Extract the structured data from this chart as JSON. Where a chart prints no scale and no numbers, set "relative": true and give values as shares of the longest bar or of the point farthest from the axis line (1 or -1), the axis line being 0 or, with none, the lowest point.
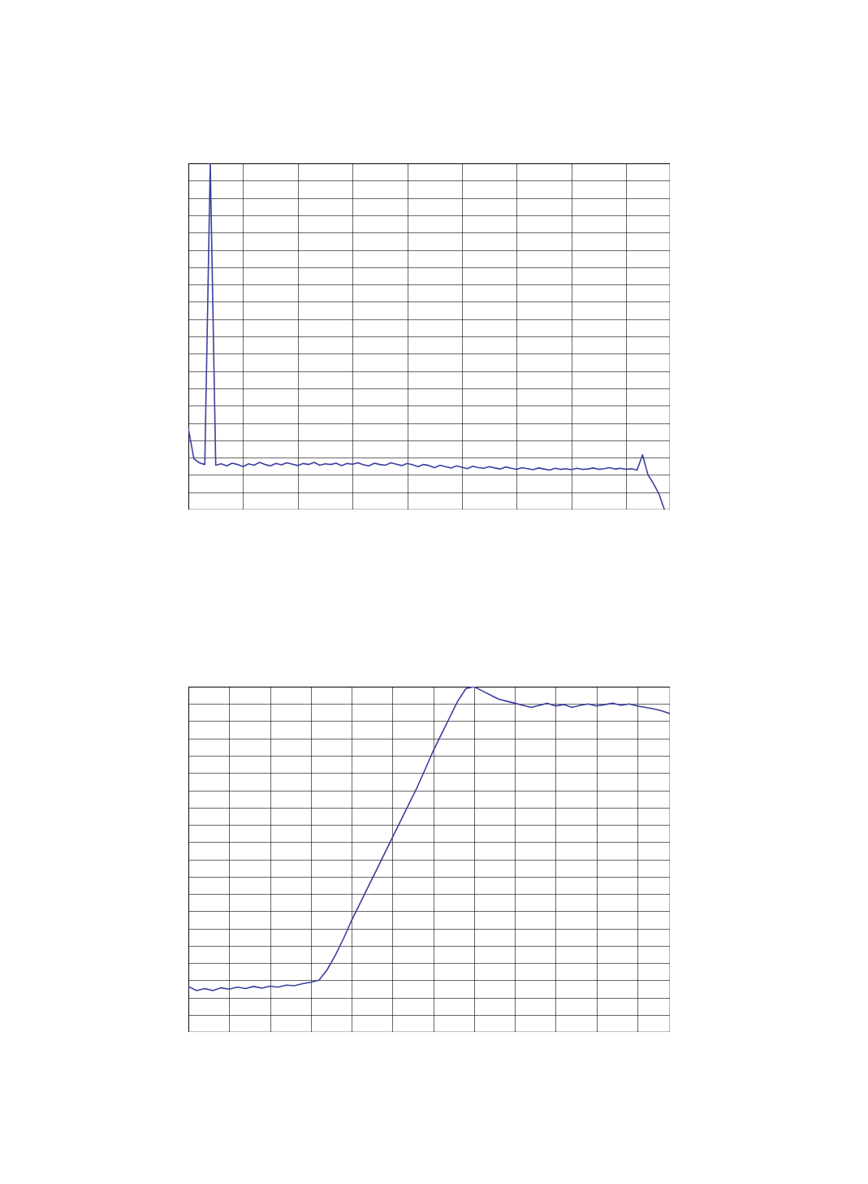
{
  "chart_data": [
    {
      "type": "line",
      "relative": true,
      "grid": true,
      "categories": [
        null,
        null,
        null,
        null,
        null,
        null,
        null,
        null,
        null,
        null,
        null,
        null,
        null,
        null,
        null,
        null,
        null,
        null,
        null,
        null,
        null,
        null,
        null,
        null,
        null,
        null,
        null,
        null,
        null,
        null,
        null,
        null,
        null,
        null,
        null,
        null,
        null,
        null,
        null,
        null,
        null,
        null,
        null,
        null,
        null,
        null,
        null,
        null,
        null,
        null,
        null,
        null,
        null,
        null,
        null,
        null,
        null,
        null,
        null,
        null,
        null,
        null,
        null,
        null,
        null,
        null,
        null,
        null,
        null,
        null,
        null,
        null,
        null,
        null,
        null,
        null,
        null,
        null,
        null,
        null,
        null,
        null,
        null,
        null,
        null,
        null,
        null,
        null,
        null
      ],
      "series": [
        {
          "color": "#3b3fa0",
          "values": [
            0.234,
            0.147,
            0.135,
            0.13,
            1,
            0.128,
            0.132,
            0.126,
            0.134,
            0.13,
            0.124,
            0.132,
            0.128,
            0.136,
            0.13,
            0.126,
            0.133,
            0.129,
            0.135,
            0.131,
            0.127,
            0.133,
            0.13,
            0.136,
            0.128,
            0.132,
            0.13,
            0.134,
            0.127,
            0.133,
            0.131,
            0.135,
            0.129,
            0.126,
            0.134,
            0.13,
            0.128,
            0.135,
            0.131,
            0.127,
            0.133,
            0.129,
            0.124,
            0.13,
            0.127,
            0.121,
            0.128,
            0.124,
            0.12,
            0.126,
            0.122,
            0.118,
            0.125,
            0.121,
            0.119,
            0.124,
            0.12,
            0.117,
            0.123,
            0.119,
            0.116,
            0.121,
            0.118,
            0.115,
            0.12,
            0.117,
            0.114,
            0.119,
            0.116,
            0.118,
            0.115,
            0.119,
            0.116,
            0.117,
            0.12,
            0.116,
            0.118,
            0.121,
            0.117,
            0.119,
            0.116,
            0.118,
            0.114,
            0.158,
            0.1,
            0.075,
            0.045,
            0,
            null
          ]
        }
      ]
    },
    {
      "type": "line",
      "relative": true,
      "grid": true,
      "categories": [
        null,
        null,
        null,
        null,
        null,
        null,
        null,
        null,
        null,
        null,
        null,
        null,
        null,
        null,
        null,
        null,
        null,
        null,
        null,
        null,
        null,
        null,
        null,
        null,
        null,
        null,
        null,
        null,
        null,
        null,
        null,
        null,
        null,
        null,
        null,
        null,
        null,
        null,
        null,
        null,
        null,
        null,
        null,
        null,
        null,
        null,
        null,
        null,
        null,
        null,
        null,
        null,
        null,
        null,
        null,
        null,
        null,
        null,
        null,
        null
      ],
      "series": [
        {
          "color": "#3b3fa0",
          "values": [
            0.132,
            0.12,
            0.126,
            0.12,
            0.128,
            0.124,
            0.13,
            0.126,
            0.132,
            0.127,
            0.133,
            0.13,
            0.136,
            0.134,
            0.14,
            0.144,
            0.15,
            0.18,
            0.222,
            0.27,
            0.323,
            0.371,
            0.419,
            0.467,
            0.515,
            0.563,
            0.611,
            0.659,
            0.707,
            0.76,
            0.814,
            0.862,
            0.91,
            0.958,
            0.994,
            1,
            0.988,
            0.976,
            0.964,
            0.958,
            0.952,
            0.946,
            0.94,
            0.946,
            0.952,
            0.944,
            0.948,
            0.94,
            0.946,
            0.95,
            0.944,
            0.948,
            0.952,
            0.946,
            0.95,
            0.944,
            0.94,
            0.936,
            0.93,
            0.922
          ]
        }
      ]
    }
  ]
}
